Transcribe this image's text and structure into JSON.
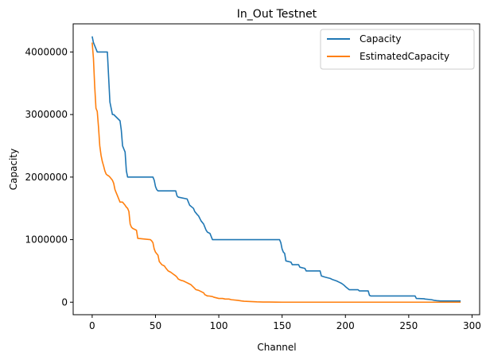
{
  "chart_data": {
    "type": "line",
    "title": "In_Out Testnet",
    "xlabel": "Channel",
    "ylabel": "Capacity",
    "xlim": [
      -15,
      306
    ],
    "ylim": [
      -200000,
      4450000
    ],
    "xticks": [
      0,
      50,
      100,
      150,
      200,
      250,
      300
    ],
    "yticks": [
      0,
      1000000,
      2000000,
      3000000,
      4000000
    ],
    "xtick_labels": [
      "0",
      "50",
      "100",
      "150",
      "200",
      "250",
      "300"
    ],
    "ytick_labels": [
      "0",
      "1000000",
      "2000000",
      "3000000",
      "4000000"
    ],
    "legend_position": "top-right",
    "series": [
      {
        "name": "Capacity",
        "color": "#1f77b4",
        "x": [
          0,
          1,
          3,
          4,
          12,
          13,
          14,
          15,
          16,
          17,
          22,
          23,
          24,
          25,
          26,
          27,
          28,
          29,
          48,
          49,
          50,
          51,
          52,
          53,
          66,
          67,
          68,
          75,
          76,
          77,
          80,
          81,
          83,
          84,
          86,
          88,
          89,
          90,
          91,
          93,
          94,
          95,
          96,
          148,
          149,
          150,
          151,
          152,
          153,
          157,
          158,
          163,
          164,
          168,
          169,
          180,
          181,
          184,
          188,
          190,
          193,
          195,
          197,
          199,
          200,
          203,
          210,
          211,
          218,
          219,
          220,
          255,
          256,
          262,
          263,
          268,
          270,
          272,
          275,
          291
        ],
        "values": [
          4250000,
          4150000,
          4050000,
          4000000,
          4000000,
          3600000,
          3200000,
          3100000,
          3000000,
          3000000,
          2900000,
          2750000,
          2500000,
          2450000,
          2400000,
          2100000,
          2000000,
          2000000,
          2000000,
          1950000,
          1850000,
          1800000,
          1780000,
          1780000,
          1780000,
          1700000,
          1680000,
          1650000,
          1600000,
          1550000,
          1500000,
          1450000,
          1400000,
          1380000,
          1300000,
          1250000,
          1200000,
          1150000,
          1120000,
          1100000,
          1050000,
          1000000,
          1000000,
          1000000,
          950000,
          850000,
          800000,
          780000,
          660000,
          640000,
          600000,
          600000,
          560000,
          540000,
          500000,
          500000,
          420000,
          400000,
          380000,
          360000,
          340000,
          320000,
          300000,
          270000,
          250000,
          200000,
          200000,
          180000,
          180000,
          110000,
          100000,
          100000,
          60000,
          55000,
          50000,
          40000,
          30000,
          25000,
          20000,
          20000
        ]
      },
      {
        "name": "EstimatedCapacity",
        "color": "#ff7f0e",
        "x": [
          0,
          1,
          2,
          3,
          4,
          5,
          6,
          7,
          8,
          9,
          10,
          11,
          12,
          13,
          14,
          16,
          17,
          18,
          19,
          20,
          21,
          22,
          24,
          26,
          27,
          28,
          29,
          30,
          31,
          32,
          35,
          36,
          46,
          47,
          48,
          49,
          50,
          52,
          53,
          55,
          57,
          58,
          60,
          62,
          64,
          66,
          67,
          68,
          70,
          72,
          74,
          76,
          78,
          79,
          80,
          82,
          84,
          85,
          88,
          89,
          91,
          92,
          95,
          96,
          100,
          103,
          105,
          108,
          110,
          115,
          118,
          120,
          125,
          130,
          135,
          140,
          145,
          150,
          200,
          250,
          291
        ],
        "values": [
          4150000,
          3900000,
          3450000,
          3100000,
          3050000,
          2800000,
          2500000,
          2350000,
          2250000,
          2180000,
          2100000,
          2050000,
          2030000,
          2020000,
          2000000,
          1950000,
          1900000,
          1800000,
          1750000,
          1700000,
          1650000,
          1600000,
          1600000,
          1550000,
          1520000,
          1500000,
          1450000,
          1250000,
          1200000,
          1180000,
          1150000,
          1020000,
          1000000,
          980000,
          950000,
          850000,
          800000,
          750000,
          650000,
          600000,
          580000,
          550000,
          500000,
          480000,
          450000,
          420000,
          400000,
          370000,
          350000,
          340000,
          320000,
          300000,
          280000,
          260000,
          240000,
          200000,
          190000,
          180000,
          150000,
          120000,
          100000,
          100000,
          90000,
          80000,
          60000,
          60000,
          50000,
          50000,
          40000,
          30000,
          20000,
          15000,
          10000,
          5000,
          3000,
          2000,
          1000,
          0,
          0,
          0,
          0
        ]
      }
    ]
  }
}
